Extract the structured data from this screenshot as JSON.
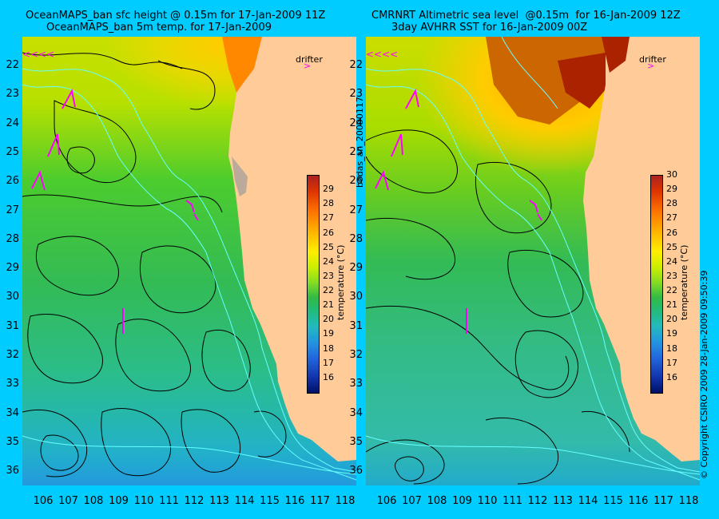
{
  "left_panel": {
    "title_line1": "OceanMAPS_ban sfc height @ 0.15m for 17-Jan-2009 11Z",
    "title_line2": "OceanMAPS_ban 5m temp. for 17-Jan-2009",
    "drifter_label": "drifter",
    "colorbar_label": "temperature (°C)"
  },
  "right_panel": {
    "title_line1": "CMRNRT Altimetric sea level  @0.15m  for 16-Jan-2009 12Z",
    "title_line2": "3day AVHRR SST for 16-Jan-2009 00Z",
    "drifter_label": "drifter",
    "colorbar_label": "temperature (°C)"
  },
  "side_text_left": "bodas_an_20090117",
  "side_text_right": "© Copyright CSIRO 2009   28-Jan-2009 09:50:39",
  "lat_ticks": [
    "22",
    "23",
    "24",
    "25",
    "26",
    "27",
    "28",
    "29",
    "30",
    "31",
    "32",
    "33",
    "34",
    "35",
    "36"
  ],
  "lon_ticks": [
    "106",
    "107",
    "108",
    "109",
    "110",
    "111",
    "112",
    "113",
    "114",
    "115",
    "116",
    "117",
    "118"
  ],
  "colorbar_left": {
    "ticks": [
      "16",
      "17",
      "18",
      "19",
      "20",
      "21",
      "22",
      "23",
      "24",
      "25",
      "26",
      "27",
      "28",
      "29"
    ],
    "range": [
      15,
      30
    ]
  },
  "colorbar_right": {
    "ticks": [
      "16",
      "17",
      "18",
      "19",
      "20",
      "21",
      "22",
      "23",
      "24",
      "25",
      "26",
      "27",
      "28",
      "29",
      "30"
    ],
    "range": [
      15,
      30
    ]
  },
  "colors": {
    "background": "#00ccff",
    "land": "#ffcc99",
    "drifter_arrow": "#ff00ff",
    "contour": "#000000",
    "bathymetry": "#66ffff"
  }
}
